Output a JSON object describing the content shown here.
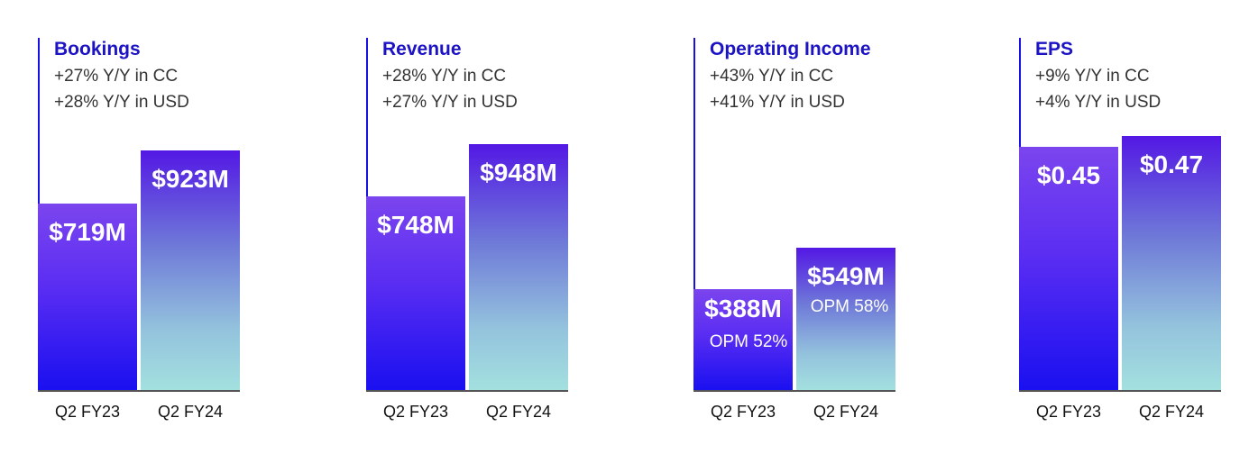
{
  "chart_data": [
    {
      "type": "bar",
      "title": "Bookings",
      "subtitle_lines": [
        "+27% Y/Y in CC",
        "+28% Y/Y in USD"
      ],
      "categories": [
        "Q2 FY23",
        "Q2 FY24"
      ],
      "values": [
        719,
        923
      ],
      "value_labels": [
        "$719M",
        "$923M"
      ],
      "unit": "$M",
      "ylim": [
        0,
        1250
      ]
    },
    {
      "type": "bar",
      "title": "Revenue",
      "subtitle_lines": [
        "+28% Y/Y in CC",
        "+27% Y/Y in USD"
      ],
      "categories": [
        "Q2 FY23",
        "Q2 FY24"
      ],
      "values": [
        748,
        948
      ],
      "value_labels": [
        "$748M",
        "$948M"
      ],
      "unit": "$M",
      "ylim": [
        0,
        1250
      ]
    },
    {
      "type": "bar",
      "title": "Operating Income",
      "subtitle_lines": [
        "+43% Y/Y in CC",
        "+41% Y/Y in USD"
      ],
      "categories": [
        "Q2 FY23",
        "Q2 FY24"
      ],
      "values": [
        388,
        549
      ],
      "value_labels": [
        "$388M",
        "$549M"
      ],
      "annotations": [
        "OPM 52%",
        "OPM 58%"
      ],
      "unit": "$M",
      "ylim": [
        0,
        1250
      ]
    },
    {
      "type": "bar",
      "title": "EPS",
      "subtitle_lines": [
        "+9% Y/Y in CC",
        "+4% Y/Y in USD"
      ],
      "categories": [
        "Q2 FY23",
        "Q2 FY24"
      ],
      "values": [
        0.45,
        0.47
      ],
      "value_labels": [
        "$0.45",
        "$0.47"
      ],
      "unit": "$",
      "ylim": [
        0,
        0.6
      ]
    }
  ],
  "colors": {
    "title": "#1c13c4",
    "axis": "#1a10e6",
    "bar_prior_top": "#7b45ee",
    "bar_prior_bottom": "#1a10f0",
    "bar_current_top": "#5318e4",
    "bar_current_bottom": "#a3e0df"
  }
}
